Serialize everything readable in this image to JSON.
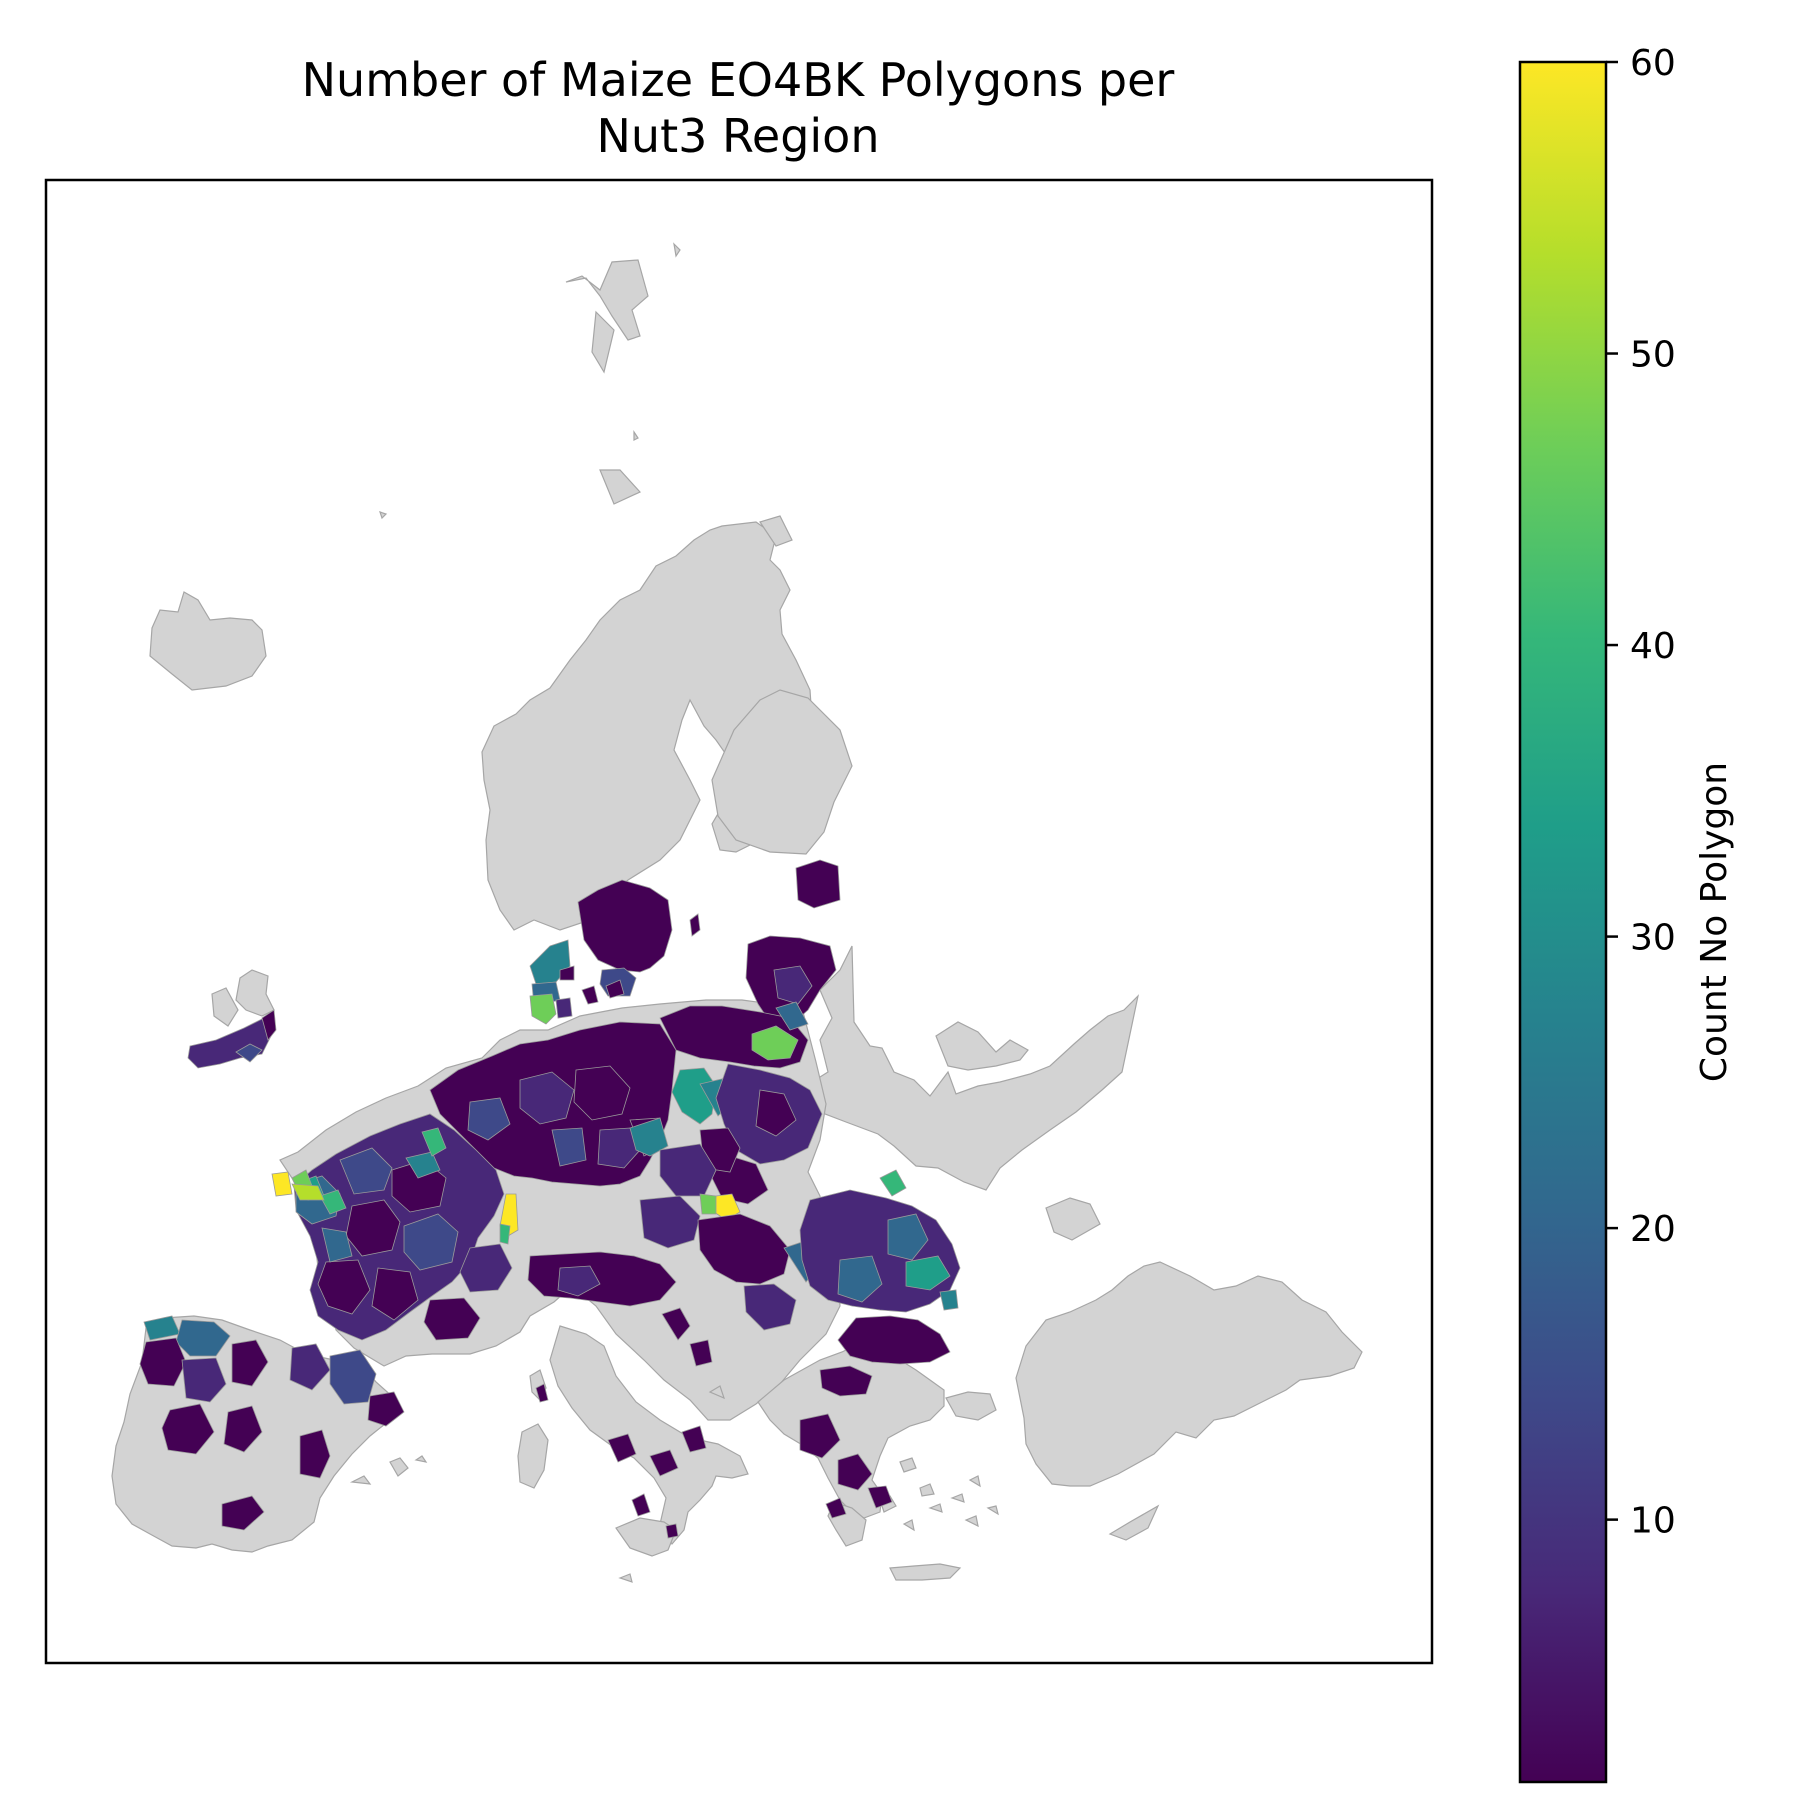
{
  "figure": {
    "title_line1": "Number of Maize EO4BK Polygons per",
    "title_line2": "Nut3 Region"
  },
  "colorbar": {
    "label": "Count No Polygon",
    "min": 1,
    "max": 60,
    "colormap": "viridis",
    "ticks": [
      {
        "value": 10,
        "label": "10"
      },
      {
        "value": 20,
        "label": "20"
      },
      {
        "value": 30,
        "label": "30"
      },
      {
        "value": 40,
        "label": "40"
      },
      {
        "value": 50,
        "label": "50"
      },
      {
        "value": 60,
        "label": "60"
      }
    ],
    "stops": [
      "#440154",
      "#482878",
      "#3e4989",
      "#31688e",
      "#26828e",
      "#1f9e89",
      "#35b779",
      "#6ece58",
      "#b5de2b",
      "#fde725"
    ]
  },
  "map": {
    "no_data_color": "#d3d3d3",
    "border_color": "#a0a0a0"
  }
}
